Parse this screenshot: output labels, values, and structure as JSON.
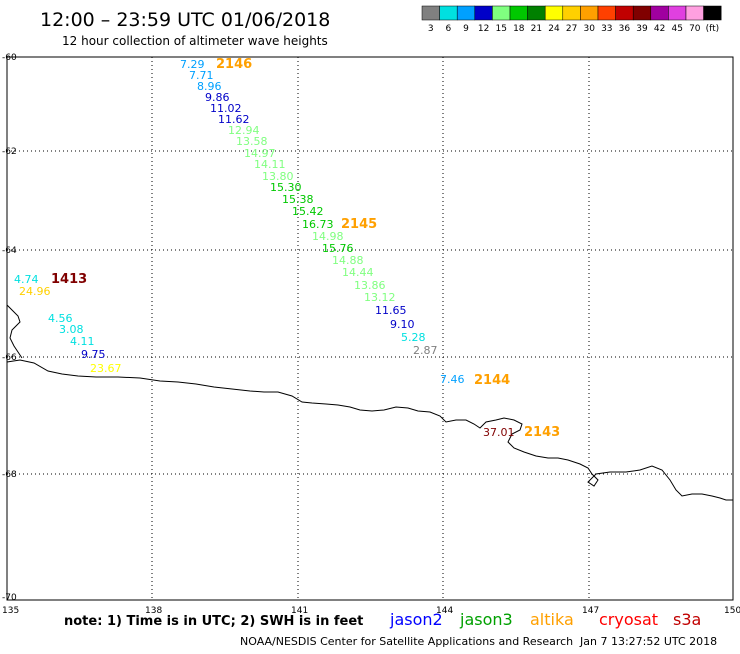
{
  "header": {
    "title": "12:00 – 23:59 UTC 01/06/2018",
    "subtitle": "12 hour collection of altimeter wave heights"
  },
  "legend": {
    "bins": [
      {
        "color": "#808080",
        "label": "3"
      },
      {
        "color": "#00e0e0",
        "label": "6"
      },
      {
        "color": "#00a0ff",
        "label": "9"
      },
      {
        "color": "#0000c8",
        "label": "12"
      },
      {
        "color": "#80ff80",
        "label": "15"
      },
      {
        "color": "#00c800",
        "label": "18"
      },
      {
        "color": "#008000",
        "label": "21"
      },
      {
        "color": "#ffff00",
        "label": "24"
      },
      {
        "color": "#ffd000",
        "label": "27"
      },
      {
        "color": "#ffa000",
        "label": "30"
      },
      {
        "color": "#ff4000",
        "label": "33"
      },
      {
        "color": "#c00000",
        "label": "36"
      },
      {
        "color": "#800000",
        "label": "39"
      },
      {
        "color": "#a000a0",
        "label": "42"
      },
      {
        "color": "#e040e0",
        "label": "45"
      },
      {
        "color": "#ffa0e0",
        "label": "70"
      },
      {
        "color": "#000000",
        "label": "(ft)"
      }
    ]
  },
  "axes": {
    "lat_labels": [
      "-60",
      "-62",
      "-64",
      "-66",
      "-68",
      "-70"
    ],
    "lon_labels": [
      "135",
      "138",
      "141",
      "144",
      "147",
      "150"
    ]
  },
  "observations": [
    {
      "value": "7.29",
      "color": "#00a0ff"
    },
    {
      "value": "7.71",
      "color": "#00a0ff"
    },
    {
      "value": "8.96",
      "color": "#00a0ff"
    },
    {
      "value": "9.86",
      "color": "#0000c8"
    },
    {
      "value": "11.02",
      "color": "#0000c8"
    },
    {
      "value": "11.62",
      "color": "#0000c8"
    },
    {
      "value": "12.94",
      "color": "#80ff80"
    },
    {
      "value": "13.58",
      "color": "#80ff80"
    },
    {
      "value": "14.97",
      "color": "#80ff80"
    },
    {
      "value": "14.11",
      "color": "#80ff80"
    },
    {
      "value": "13.80",
      "color": "#80ff80"
    },
    {
      "value": "15.30",
      "color": "#00c800"
    },
    {
      "value": "15.38",
      "color": "#00c800"
    },
    {
      "value": "15.42",
      "color": "#00c800"
    },
    {
      "value": "16.73",
      "color": "#00c800"
    },
    {
      "value": "14.98",
      "color": "#80ff80"
    },
    {
      "value": "15.76",
      "color": "#00c800"
    },
    {
      "value": "14.88",
      "color": "#80ff80"
    },
    {
      "value": "14.44",
      "color": "#80ff80"
    },
    {
      "value": "13.86",
      "color": "#80ff80"
    },
    {
      "value": "13.12",
      "color": "#80ff80"
    },
    {
      "value": "11.65",
      "color": "#0000c8"
    },
    {
      "value": "9.10",
      "color": "#0000c8"
    },
    {
      "value": "5.28",
      "color": "#00e0e0"
    },
    {
      "value": "2.87",
      "color": "#808080"
    },
    {
      "value": "4.74",
      "color": "#00e0e0"
    },
    {
      "value": "24.96",
      "color": "#ffd000"
    },
    {
      "value": "4.56",
      "color": "#00e0e0"
    },
    {
      "value": "3.08",
      "color": "#00e0e0"
    },
    {
      "value": "4.11",
      "color": "#00e0e0"
    },
    {
      "value": "9.75",
      "color": "#0000c8"
    },
    {
      "value": "23.67",
      "color": "#ffff00"
    },
    {
      "value": "7.46",
      "color": "#00a0ff"
    },
    {
      "value": "37.01",
      "color": "#800000"
    }
  ],
  "passes": [
    {
      "id": "2146",
      "color": "#ffa000"
    },
    {
      "id": "2145",
      "color": "#ffa000"
    },
    {
      "id": "1413",
      "color": "#800000"
    },
    {
      "id": "2144",
      "color": "#ffa000"
    },
    {
      "id": "2143",
      "color": "#ffa000"
    }
  ],
  "footer": {
    "note": "note:  1) Time is in UTC;  2) SWH is in feet",
    "satellites": [
      {
        "name": "jason2",
        "color": "#0000ff"
      },
      {
        "name": "jason3",
        "color": "#00a000"
      },
      {
        "name": "altika",
        "color": "#ffa000"
      },
      {
        "name": "cryosat",
        "color": "#ff0000"
      },
      {
        "name": "s3a",
        "color": "#c00000"
      }
    ],
    "credit": "NOAA/NESDIS Center for Satellite Applications and Research",
    "timestamp": "Jan  7 13:27:52 UTC 2018"
  }
}
